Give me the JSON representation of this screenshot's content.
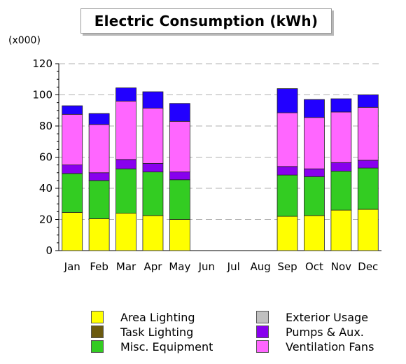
{
  "chart_data": {
    "type": "bar",
    "stacked": true,
    "title": "Electric Consumption (kWh)",
    "unit_label": "(x000)",
    "xlabel": "",
    "ylabel": "",
    "ylim": [
      0,
      120
    ],
    "yticks": [
      0,
      20,
      40,
      60,
      80,
      100,
      120
    ],
    "grid": "horizontal dashed",
    "legend_position": "bottom",
    "categories": [
      "Jan",
      "Feb",
      "Mar",
      "Apr",
      "May",
      "Jun",
      "Jul",
      "Aug",
      "Sep",
      "Oct",
      "Nov",
      "Dec"
    ],
    "series": [
      {
        "name": "Area Lighting",
        "color": "#ffff00",
        "values": [
          24.5,
          20.5,
          24,
          22.5,
          20,
          0,
          0,
          0,
          22,
          22.5,
          26,
          26.5
        ]
      },
      {
        "name": "Task Lighting",
        "color": "#6b5a10",
        "values": [
          0,
          0,
          0,
          0,
          0,
          0,
          0,
          0,
          0,
          0,
          0,
          0
        ]
      },
      {
        "name": "Misc. Equipment",
        "color": "#33cc22",
        "values": [
          25,
          24.5,
          28.5,
          28,
          25.5,
          0,
          0,
          0,
          26.5,
          25,
          25,
          26.5
        ]
      },
      {
        "name": "Exterior Usage",
        "color": "#c0c0c0",
        "values": [
          0,
          0,
          0,
          0,
          0,
          0,
          0,
          0,
          0,
          0,
          0,
          0
        ]
      },
      {
        "name": "Pumps & Aux.",
        "color": "#8800ee",
        "values": [
          5.5,
          5,
          6,
          5.5,
          5,
          0,
          0,
          0,
          5.5,
          5,
          5.5,
          5
        ]
      },
      {
        "name": "Ventilation Fans",
        "color": "#ff66ff",
        "values": [
          32.5,
          31,
          37.5,
          35.5,
          32.5,
          0,
          0,
          0,
          34.5,
          33,
          32.5,
          34
        ]
      },
      {
        "name": "",
        "color": "#2200ff",
        "values": [
          5.5,
          7,
          8.5,
          10.5,
          11.5,
          0,
          0,
          0,
          15.5,
          11.5,
          8.5,
          8
        ]
      }
    ]
  },
  "legend": {
    "items": [
      {
        "label": "Area Lighting",
        "color": "#ffff00"
      },
      {
        "label": "Task Lighting",
        "color": "#6b5a10"
      },
      {
        "label": "Misc. Equipment",
        "color": "#33cc22"
      },
      {
        "label": "Exterior Usage",
        "color": "#c0c0c0"
      },
      {
        "label": "Pumps & Aux.",
        "color": "#8800ee"
      },
      {
        "label": "Ventilation Fans",
        "color": "#ff66ff"
      }
    ]
  }
}
